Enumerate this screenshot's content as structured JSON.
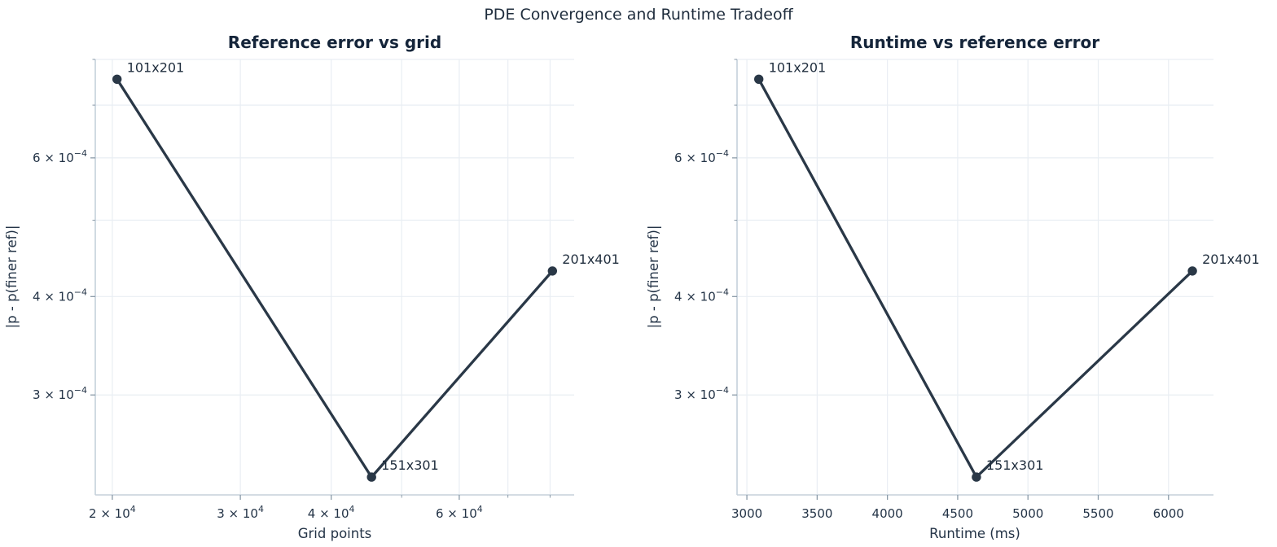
{
  "figure": {
    "suptitle": "PDE Convergence and Runtime Tradeoff",
    "background": "#ffffff",
    "series_color": "#2a3847",
    "text_color": "#1f2d3d",
    "grid_color": "#e9eef3",
    "spine_color": "#c5d0da",
    "tick_mark_color": "#8a9aa8"
  },
  "chart_data": [
    {
      "type": "line",
      "title": "Reference error vs grid",
      "xlabel": "Grid points",
      "ylabel": "|p - p(finer ref)|",
      "xscale": "log",
      "yscale": "log",
      "xlim": [
        18950,
        86340
      ],
      "ylim": [
        0.000224,
        0.0008
      ],
      "grid": "both",
      "legend": "none",
      "points": [
        {
          "label": "101x201",
          "x": 20301,
          "y": 0.000755
        },
        {
          "label": "151x301",
          "x": 45451,
          "y": 0.000236
        },
        {
          "label": "201x401",
          "x": 80601,
          "y": 0.000431
        }
      ],
      "xticks": [
        {
          "v": 20000,
          "base": "2 × 10",
          "exp": "4"
        },
        {
          "v": 30000,
          "base": "3 × 10",
          "exp": "4"
        },
        {
          "v": 40000,
          "base": "4 × 10",
          "exp": "4"
        },
        {
          "v": 60000,
          "base": "6 × 10",
          "exp": "4"
        }
      ],
      "xticks_minor": [
        50000,
        70000,
        80000
      ],
      "yticks": [
        {
          "v": 0.0003,
          "base": "3 × 10",
          "exp": "−4"
        },
        {
          "v": 0.0004,
          "base": "4 × 10",
          "exp": "−4"
        },
        {
          "v": 0.0006,
          "base": "6 × 10",
          "exp": "−4"
        }
      ],
      "yticks_minor": [
        0.0005,
        0.0007,
        0.0008
      ]
    },
    {
      "type": "line",
      "title": "Runtime vs reference error",
      "xlabel": "Runtime (ms)",
      "ylabel": "|p - p(finer ref)|",
      "xscale": "linear",
      "yscale": "log",
      "xlim": [
        2930,
        6320
      ],
      "ylim": [
        0.000224,
        0.0008
      ],
      "grid": "both",
      "legend": "none",
      "points": [
        {
          "label": "101x201",
          "x": 3085,
          "y": 0.000755
        },
        {
          "label": "151x301",
          "x": 4633,
          "y": 0.000236
        },
        {
          "label": "201x401",
          "x": 6170,
          "y": 0.000431
        }
      ],
      "xticks": [
        {
          "v": 3000,
          "base": "3000",
          "exp": ""
        },
        {
          "v": 3500,
          "base": "3500",
          "exp": ""
        },
        {
          "v": 4000,
          "base": "4000",
          "exp": ""
        },
        {
          "v": 4500,
          "base": "4500",
          "exp": ""
        },
        {
          "v": 5000,
          "base": "5000",
          "exp": ""
        },
        {
          "v": 5500,
          "base": "5500",
          "exp": ""
        },
        {
          "v": 6000,
          "base": "6000",
          "exp": ""
        }
      ],
      "xticks_minor": [],
      "yticks": [
        {
          "v": 0.0003,
          "base": "3 × 10",
          "exp": "−4"
        },
        {
          "v": 0.0004,
          "base": "4 × 10",
          "exp": "−4"
        },
        {
          "v": 0.0006,
          "base": "6 × 10",
          "exp": "−4"
        }
      ],
      "yticks_minor": [
        0.0005,
        0.0007,
        0.0008
      ]
    }
  ]
}
